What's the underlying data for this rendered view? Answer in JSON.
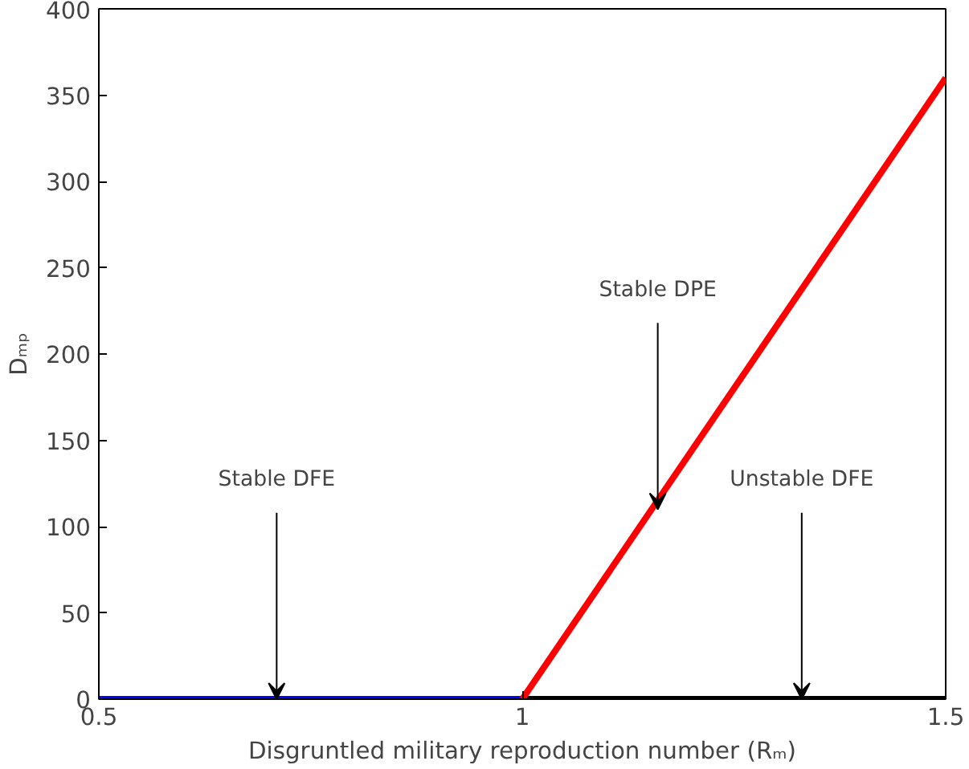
{
  "chart_data": {
    "type": "line",
    "xlabel": "Disgruntled military reproduction number (Rₘ)",
    "ylabel": "Dₘₚ",
    "xlim": [
      0.5,
      1.5
    ],
    "xticks": [
      0.5,
      1,
      1.5
    ],
    "ylim": [
      0,
      400
    ],
    "yticks": [
      0,
      50,
      100,
      150,
      200,
      250,
      300,
      350,
      400
    ],
    "grid": false,
    "series": [
      {
        "color": "#0000ff",
        "x": [
          0.5,
          1
        ],
        "values": [
          0,
          0
        ]
      },
      {
        "color": "#000000",
        "x": [
          1,
          1.5
        ],
        "values": [
          0,
          0
        ]
      },
      {
        "color": "#ff0000",
        "x": [
          1,
          1.5
        ],
        "values": [
          0,
          360
        ]
      }
    ],
    "annotations": [
      {
        "text": "Stable DFE",
        "x": 0.71,
        "y": 0
      },
      {
        "text": "Stable DPE",
        "x": 1.16,
        "y": 110
      },
      {
        "text": "Unstable DFE",
        "x": 1.33,
        "y": 0
      }
    ]
  }
}
